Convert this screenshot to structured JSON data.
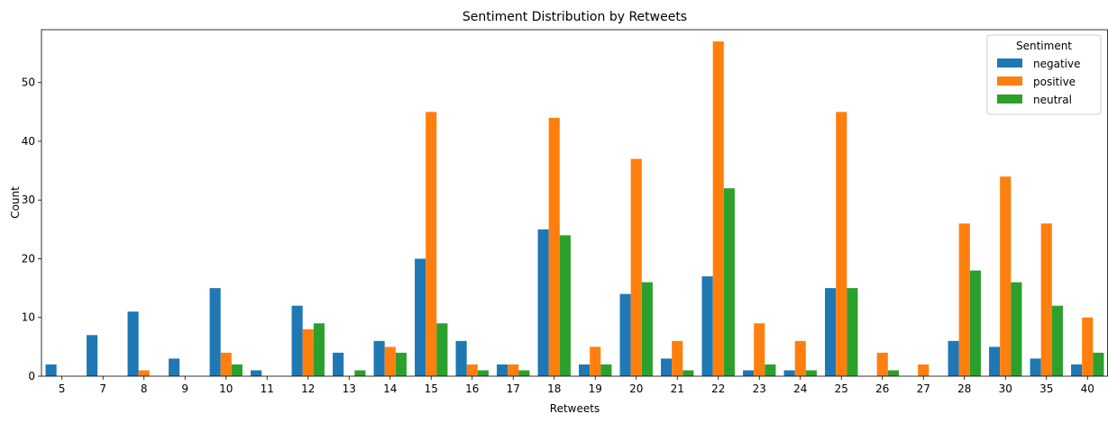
{
  "chart_data": {
    "type": "bar",
    "title": "Sentiment Distribution by Retweets",
    "xlabel": "Retweets",
    "ylabel": "Count",
    "ylim": [
      0,
      59
    ],
    "yticks": [
      0,
      10,
      20,
      30,
      40,
      50
    ],
    "grid": false,
    "legend": {
      "title": "Sentiment",
      "placement": "top-right"
    },
    "categories": [
      "5",
      "7",
      "8",
      "9",
      "10",
      "11",
      "12",
      "13",
      "14",
      "15",
      "16",
      "17",
      "18",
      "19",
      "20",
      "21",
      "22",
      "23",
      "24",
      "25",
      "26",
      "27",
      "28",
      "30",
      "35",
      "40"
    ],
    "series": [
      {
        "name": "negative",
        "color": "#1f77b4",
        "values": [
          2,
          7,
          11,
          3,
          15,
          1,
          12,
          4,
          6,
          20,
          6,
          2,
          25,
          2,
          14,
          3,
          17,
          1,
          1,
          15,
          0,
          0,
          6,
          5,
          3,
          2
        ]
      },
      {
        "name": "positive",
        "color": "#ff7f0e",
        "values": [
          0,
          0,
          1,
          0,
          4,
          0,
          8,
          0,
          5,
          45,
          2,
          2,
          44,
          5,
          37,
          6,
          57,
          9,
          6,
          45,
          4,
          2,
          26,
          34,
          26,
          10
        ]
      },
      {
        "name": "neutral",
        "color": "#2ca02c",
        "values": [
          0,
          0,
          0,
          0,
          2,
          0,
          9,
          1,
          4,
          9,
          1,
          1,
          24,
          2,
          16,
          1,
          32,
          2,
          1,
          15,
          1,
          0,
          18,
          16,
          12,
          4
        ]
      }
    ]
  }
}
